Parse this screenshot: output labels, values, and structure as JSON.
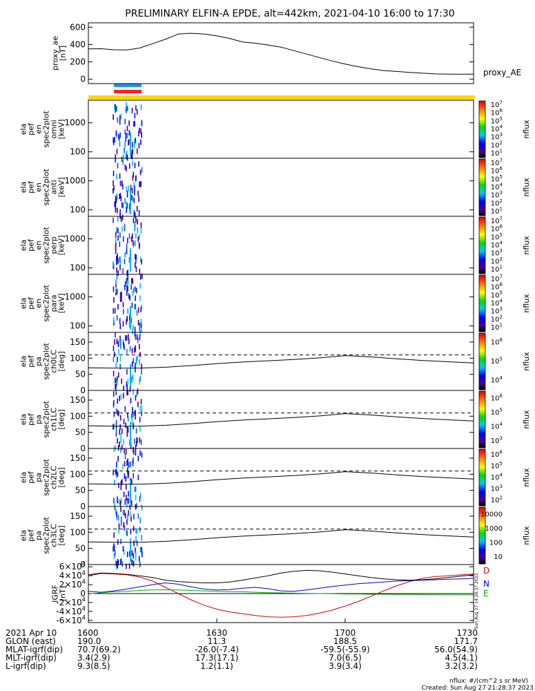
{
  "title": "PRELIMINARY ELFIN-A EPDE, alt=442km, 2021-04-10 16:00 to 17:30",
  "colors": {
    "blue_bar": "#1e90ff",
    "red_bar": "#ff2020",
    "yellow_bar": "#ffd700",
    "D": "#cc0000",
    "N": "#0000cc",
    "E": "#00aa00"
  },
  "chart_data": [
    {
      "type": "line",
      "name": "proxy_ae",
      "ylabel": [
        "proxy_ae",
        "[nT]"
      ],
      "legend": "proxy_AE",
      "yticks": [
        "0",
        "200",
        "400",
        "600"
      ],
      "ylim": [
        -50,
        650
      ],
      "x": [
        16.0,
        16.05,
        16.1,
        16.15,
        16.2,
        16.25,
        16.3,
        16.35,
        16.4,
        16.45,
        16.5,
        16.55,
        16.6,
        16.65,
        16.7,
        16.75,
        16.8,
        16.85,
        16.9,
        16.95,
        17.0,
        17.05,
        17.1,
        17.15,
        17.2,
        17.25,
        17.3,
        17.35,
        17.4,
        17.45,
        17.5
      ],
      "values": [
        350,
        352,
        340,
        338,
        360,
        410,
        460,
        520,
        530,
        520,
        500,
        470,
        430,
        415,
        395,
        370,
        330,
        290,
        250,
        210,
        175,
        145,
        120,
        100,
        90,
        80,
        70,
        62,
        60,
        58,
        60
      ]
    },
    {
      "type": "heatmap",
      "name": "omni",
      "ylabel": [
        "ela",
        "pef",
        "en",
        "spec2plot",
        "omni",
        "[keV]"
      ],
      "yticks": [
        "100",
        "1000"
      ],
      "ylim": [
        60,
        6000
      ],
      "scale": "log",
      "cbar": {
        "label": "nflux",
        "ticks": [
          "10^1",
          "10^2",
          "10^3",
          "10^4",
          "10^5",
          "10^6",
          "10^7"
        ]
      }
    },
    {
      "type": "heatmap",
      "name": "anti",
      "ylabel": [
        "ela",
        "pef",
        "en",
        "spec2plot",
        "anti",
        "[keV]"
      ],
      "yticks": [
        "100",
        "1000"
      ],
      "ylim": [
        60,
        6000
      ],
      "scale": "log",
      "cbar": {
        "label": "nflux",
        "ticks": [
          "10^1",
          "10^2",
          "10^3",
          "10^4",
          "10^5",
          "10^6",
          "10^7"
        ]
      }
    },
    {
      "type": "heatmap",
      "name": "perp",
      "ylabel": [
        "ela",
        "pef",
        "en",
        "spec2plot",
        "perp",
        "[keV]"
      ],
      "yticks": [
        "100",
        "1000"
      ],
      "ylim": [
        60,
        6000
      ],
      "scale": "log",
      "cbar": {
        "label": "nflux",
        "ticks": [
          "10^1",
          "10^2",
          "10^3",
          "10^4",
          "10^5",
          "10^6",
          "10^7"
        ]
      }
    },
    {
      "type": "heatmap",
      "name": "para",
      "ylabel": [
        "ela",
        "pef",
        "en",
        "spec2plot",
        "para",
        "[keV]"
      ],
      "yticks": [
        "100",
        "1000"
      ],
      "ylim": [
        60,
        6000
      ],
      "scale": "log",
      "cbar": {
        "label": "nflux",
        "ticks": [
          "10^1",
          "10^2",
          "10^3",
          "10^4",
          "10^5",
          "10^6",
          "10^7"
        ]
      }
    },
    {
      "type": "heatmap",
      "name": "ch0LC",
      "ylabel": [
        "ela",
        "pef",
        "pa",
        "spec2plot",
        "ch0LC",
        "[deg]"
      ],
      "yticks": [
        "0",
        "50",
        "100",
        "150"
      ],
      "ylim": [
        0,
        180
      ],
      "dashed": 110,
      "lc_x": [
        16.0,
        16.1,
        16.2,
        16.3,
        16.4,
        16.5,
        16.6,
        16.7,
        16.8,
        16.9,
        17.0,
        17.1,
        17.2,
        17.3,
        17.4,
        17.5
      ],
      "lc_y": [
        70,
        69,
        69,
        72,
        77,
        83,
        88,
        92,
        96,
        101,
        108,
        104,
        98,
        93,
        89,
        85
      ],
      "cbar": {
        "label": "nflux",
        "ticks": [
          "10^4",
          "10^5",
          "10^6"
        ]
      }
    },
    {
      "type": "heatmap",
      "name": "ch1LC",
      "ylabel": [
        "ela",
        "pef",
        "pa",
        "spec2plot",
        "ch1LC",
        "[deg]"
      ],
      "yticks": [
        "0",
        "50",
        "100",
        "150"
      ],
      "ylim": [
        0,
        180
      ],
      "dashed": 110,
      "lc_x": [
        16.0,
        16.1,
        16.2,
        16.3,
        16.4,
        16.5,
        16.6,
        16.7,
        16.8,
        16.9,
        17.0,
        17.1,
        17.2,
        17.3,
        17.4,
        17.5
      ],
      "lc_y": [
        70,
        69,
        69,
        72,
        77,
        83,
        88,
        92,
        96,
        101,
        108,
        104,
        98,
        93,
        89,
        85
      ],
      "cbar": {
        "label": "nflux",
        "ticks": [
          "10^3",
          "10^4",
          "10^5",
          "10^6"
        ]
      }
    },
    {
      "type": "heatmap",
      "name": "ch2LC",
      "ylabel": [
        "ela",
        "pef",
        "pa",
        "spec2plot",
        "ch2LC",
        "[deg]"
      ],
      "yticks": [
        "0",
        "50",
        "100",
        "150"
      ],
      "ylim": [
        0,
        180
      ],
      "dashed": 110,
      "lc_x": [
        16.0,
        16.1,
        16.2,
        16.3,
        16.4,
        16.5,
        16.6,
        16.7,
        16.8,
        16.9,
        17.0,
        17.1,
        17.2,
        17.3,
        17.4,
        17.5
      ],
      "lc_y": [
        70,
        69,
        69,
        72,
        77,
        83,
        88,
        92,
        96,
        101,
        108,
        104,
        98,
        93,
        89,
        85
      ],
      "cbar": {
        "label": "nflux",
        "ticks": [
          "10^2",
          "10^3",
          "10^4",
          "10^5",
          "10^6"
        ]
      }
    },
    {
      "type": "heatmap",
      "name": "ch3LC",
      "ylabel": [
        "ela",
        "pef",
        "pa",
        "spec2plot",
        "ch3LC",
        "[deg]"
      ],
      "yticks": [
        "0",
        "50",
        "100",
        "150"
      ],
      "ylim": [
        0,
        180
      ],
      "dashed": 110,
      "lc_x": [
        16.0,
        16.1,
        16.2,
        16.3,
        16.4,
        16.5,
        16.6,
        16.7,
        16.8,
        16.9,
        17.0,
        17.1,
        17.2,
        17.3,
        17.4,
        17.5
      ],
      "lc_y": [
        70,
        69,
        69,
        72,
        77,
        83,
        88,
        92,
        96,
        101,
        108,
        104,
        98,
        93,
        89,
        85
      ],
      "cbar": {
        "label": "nflux",
        "ticks": [
          "10",
          "100",
          "1000",
          "10000"
        ]
      }
    },
    {
      "type": "line",
      "name": "IGRF",
      "ylabel": [
        "IGRF",
        "[nT]"
      ],
      "yticks": [
        "-6×10^4",
        "-4×10^4",
        "-2×10^4",
        "0",
        "2×10^4",
        "4×10^4",
        "6×10^4"
      ],
      "ylim": [
        -65000,
        65000
      ],
      "x": [
        16.0,
        16.05,
        16.1,
        16.15,
        16.2,
        16.25,
        16.3,
        16.35,
        16.4,
        16.45,
        16.5,
        16.55,
        16.6,
        16.65,
        16.7,
        16.75,
        16.8,
        16.85,
        16.9,
        16.95,
        17.0,
        17.05,
        17.1,
        17.15,
        17.2,
        17.25,
        17.3,
        17.35,
        17.4,
        17.45,
        17.5
      ],
      "series": [
        {
          "name": "D",
          "values": [
            40000,
            45000,
            44000,
            42000,
            37000,
            28000,
            14000,
            0,
            -14000,
            -26000,
            -35000,
            -41000,
            -45000,
            -49000,
            -52000,
            -53000,
            -52000,
            -49000,
            -44000,
            -37000,
            -28000,
            -18000,
            -6000,
            6000,
            17000,
            27000,
            34000,
            38000,
            40000,
            42000,
            44000
          ]
        },
        {
          "name": "N",
          "values": [
            5000,
            3000,
            6000,
            10000,
            15000,
            20000,
            24000,
            21000,
            15000,
            10000,
            8000,
            9000,
            12000,
            14000,
            11000,
            6000,
            5000,
            8000,
            12000,
            16000,
            19000,
            22000,
            24000,
            26000,
            28000,
            29000,
            30000,
            31000,
            32000,
            33000,
            34000
          ]
        },
        {
          "name": "E",
          "values": [
            -1000,
            2000,
            4000,
            5000,
            7000,
            8000,
            8500,
            8000,
            7000,
            6000,
            5000,
            4500,
            4000,
            3000,
            2000,
            1500,
            1000,
            500,
            0,
            -500,
            -1000,
            -1000,
            -1500,
            -1500,
            -2000,
            -2000,
            -2500,
            -2500,
            -3000,
            -3000,
            -3000
          ]
        },
        {
          "name": "total",
          "values": [
            42000,
            46000,
            45000,
            43000,
            40000,
            36000,
            30000,
            27000,
            25000,
            24000,
            24000,
            26000,
            30000,
            35000,
            40000,
            46000,
            50000,
            52000,
            51000,
            48000,
            44000,
            40000,
            36000,
            33000,
            31000,
            30000,
            31000,
            33000,
            36000,
            39000,
            42000
          ]
        }
      ]
    }
  ],
  "xticks": [
    "1600",
    "1630",
    "1700",
    "1730"
  ],
  "footer_rows": [
    {
      "label": "2021 Apr 10",
      "values": [
        "1600",
        "1630",
        "1700",
        "1730"
      ]
    },
    {
      "label": "GLON (east)",
      "values": [
        "190.0",
        "11.3",
        "188.5",
        "171.7"
      ]
    },
    {
      "label": "MLAT-igrf(dip)",
      "values": [
        "70.7(69.2)",
        "-26.0(-7.4)",
        "-59.5(-55.9)",
        "56.0(54.9)"
      ]
    },
    {
      "label": "MLT-igrf(dip)",
      "values": [
        "3.4(2.9)",
        "17.3(17.1)",
        "7.0(6.5)",
        "4.5(4.1)"
      ]
    },
    {
      "label": "L-igrf(dip)",
      "values": [
        "9.3(8.5)",
        "1.2(1.1)",
        "3.9(3.4)",
        "3.2(3.2)"
      ]
    }
  ],
  "units_note": "nflux: #/(cm^2 s sr MeV)",
  "created": "Created: Sun Aug 27 21:28:37 2023",
  "vertical_stamp": "Sun Aug 27 14:28:37 2023"
}
